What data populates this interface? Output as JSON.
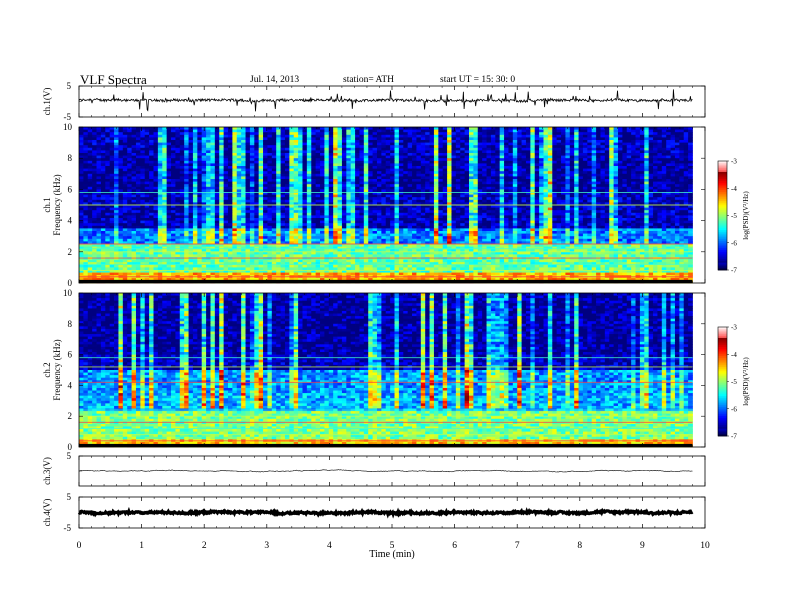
{
  "header": {
    "title": "VLF  Spectra",
    "date": "Jul.  14,  2013",
    "station": "station= ATH",
    "start": "start  UT  =    15: 30: 0"
  },
  "chart_data": [
    {
      "type": "line",
      "panel": "ch1-waveform",
      "ylabel": "ch.1(V)",
      "ylim": [
        -5,
        5
      ],
      "yticks": [
        "5",
        "-5"
      ],
      "baseline": 0.4,
      "noise": 0.4,
      "spikes": 0.8,
      "color": "#000000"
    },
    {
      "type": "heatmap",
      "panel": "ch1-spectrogram",
      "ylabel_lines": [
        "ch.1",
        "Frequency  (kHz)"
      ],
      "ylim": [
        0,
        10
      ],
      "yticks": [
        "0",
        "2",
        "4",
        "6",
        "8",
        "10"
      ],
      "colorbar": {
        "label": "log(PSD)(V²/Hz)",
        "ticks": [
          "-3",
          "-4",
          "-5",
          "-6",
          "-7"
        ],
        "range": [
          -7,
          -3
        ]
      },
      "bands": [
        {
          "f0": 0,
          "f1": 0.6,
          "level": -4.2
        },
        {
          "f0": 0.6,
          "f1": 2.5,
          "level": -5.1
        },
        {
          "f0": 2.5,
          "f1": 3.5,
          "level": -6.0
        },
        {
          "f0": 3.5,
          "f1": 5.8,
          "level": -6.8
        },
        {
          "f0": 5.8,
          "f1": 8.0,
          "level": -6.9
        },
        {
          "f0": 8.0,
          "f1": 10,
          "level": -6.8
        }
      ],
      "tone_lines_khz": [
        0.4,
        0.8,
        1.2,
        1.6,
        2.0,
        2.2,
        2.5,
        5.0,
        5.8
      ]
    },
    {
      "type": "heatmap",
      "panel": "ch2-spectrogram",
      "ylabel_lines": [
        "ch.2",
        "Frequency  (kHz)"
      ],
      "ylim": [
        0,
        10
      ],
      "yticks": [
        "0",
        "2",
        "4",
        "6",
        "8",
        "10"
      ],
      "colorbar": {
        "label": "log(PSD)(V²/Hz)",
        "ticks": [
          "-3",
          "-4",
          "-5",
          "-6",
          "-7"
        ],
        "range": [
          -7,
          -3
        ]
      },
      "bands": [
        {
          "f0": 0,
          "f1": 0.5,
          "level": -4.3
        },
        {
          "f0": 0.5,
          "f1": 2.4,
          "level": -5.0
        },
        {
          "f0": 2.4,
          "f1": 3.5,
          "level": -5.8
        },
        {
          "f0": 3.5,
          "f1": 5.0,
          "level": -5.9
        },
        {
          "f0": 5.0,
          "f1": 6.0,
          "level": -6.8
        },
        {
          "f0": 6.0,
          "f1": 10,
          "level": -6.9
        }
      ],
      "tone_lines_khz": [
        0.4,
        0.8,
        1.2,
        1.6,
        2.0,
        2.4,
        4.2,
        5.2,
        5.8
      ]
    },
    {
      "type": "line",
      "panel": "ch3-waveform",
      "ylabel": "ch.3(V)",
      "ylim": [
        -5,
        5
      ],
      "yticks": [
        "5"
      ],
      "baseline": 0.0,
      "noise": 0.05,
      "spikes": 0.0,
      "color": "#000000"
    },
    {
      "type": "line",
      "panel": "ch4-waveform",
      "ylabel": "ch.4(V)",
      "ylim": [
        -5,
        5
      ],
      "yticks": [
        "5",
        "-5"
      ],
      "baseline": 0.0,
      "noise": 0.3,
      "spikes": 0.0,
      "color": "#000000"
    }
  ],
  "xaxis": {
    "label": "Time  (min)",
    "range": [
      0,
      10
    ],
    "data_end": 9.8,
    "ticks": [
      "0",
      "1",
      "2",
      "3",
      "4",
      "5",
      "6",
      "7",
      "8",
      "9",
      "10"
    ]
  }
}
